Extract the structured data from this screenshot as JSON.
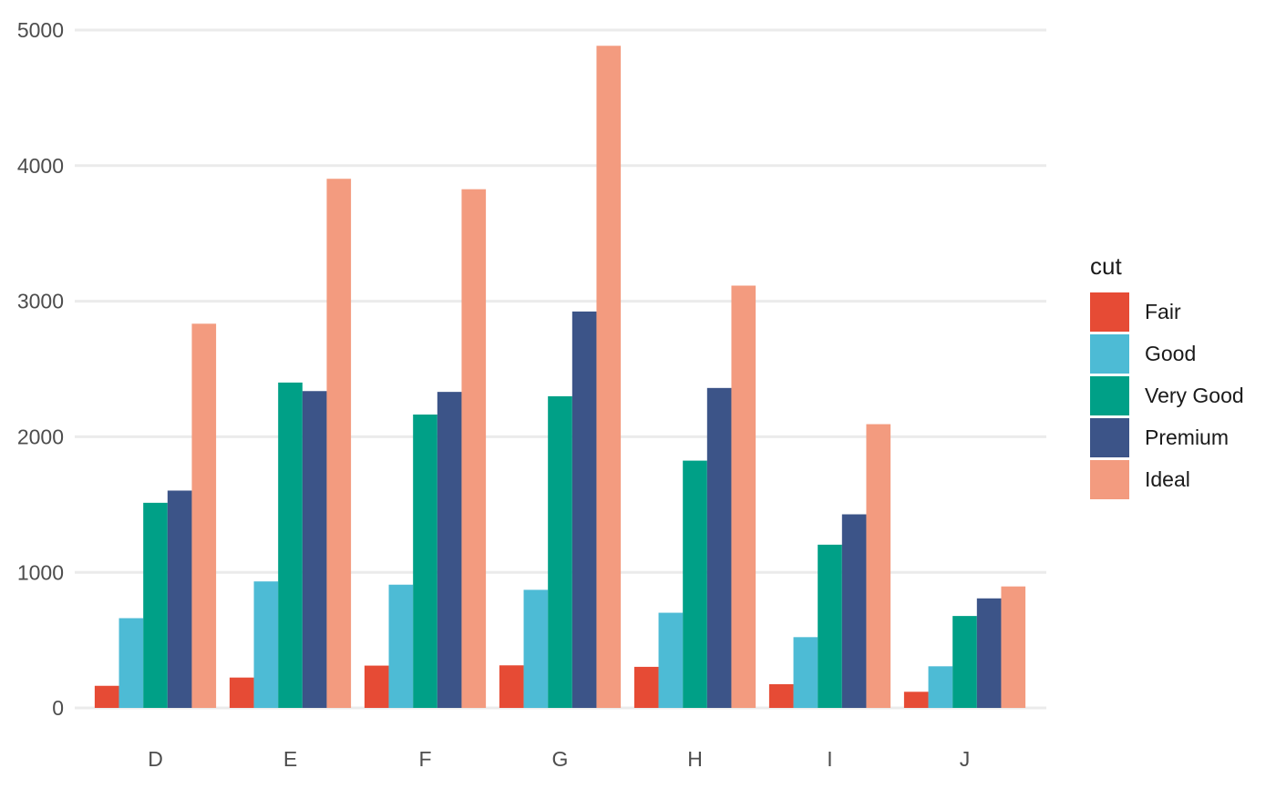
{
  "chart_data": {
    "type": "bar",
    "subtype": "grouped-vertical",
    "title": "",
    "xlabel": "",
    "ylabel": "",
    "categories": [
      "D",
      "E",
      "F",
      "G",
      "H",
      "I",
      "J"
    ],
    "ylim": [
      0,
      5000
    ],
    "y_ticks": [
      0,
      1000,
      2000,
      3000,
      4000,
      5000
    ],
    "y_tick_labels": [
      "0",
      "1000",
      "2000",
      "3000",
      "4000",
      "5000"
    ],
    "grid": "horizontal-major-only",
    "legend": {
      "title": "cut",
      "position": "right",
      "entries": [
        "Fair",
        "Good",
        "Very Good",
        "Premium",
        "Ideal"
      ]
    },
    "series": [
      {
        "name": "Fair",
        "color": "#E64B35",
        "values": [
          163,
          224,
          312,
          314,
          303,
          175,
          119
        ]
      },
      {
        "name": "Good",
        "color": "#4DBBD5",
        "values": [
          662,
          933,
          909,
          871,
          702,
          522,
          307
        ]
      },
      {
        "name": "Very Good",
        "color": "#00A087",
        "values": [
          1513,
          2400,
          2164,
          2299,
          1824,
          1204,
          678
        ]
      },
      {
        "name": "Premium",
        "color": "#3C5488",
        "values": [
          1603,
          2337,
          2331,
          2924,
          2360,
          1428,
          808
        ]
      },
      {
        "name": "Ideal",
        "color": "#F39B7F",
        "values": [
          2834,
          3903,
          3826,
          4884,
          3115,
          2093,
          896
        ]
      }
    ]
  },
  "theme": {
    "background": "#FFFFFF",
    "gridline_color": "#EBEBEB",
    "axis_text_color": "#4D4D4D",
    "legend_text_color": "#1A1A1A"
  }
}
